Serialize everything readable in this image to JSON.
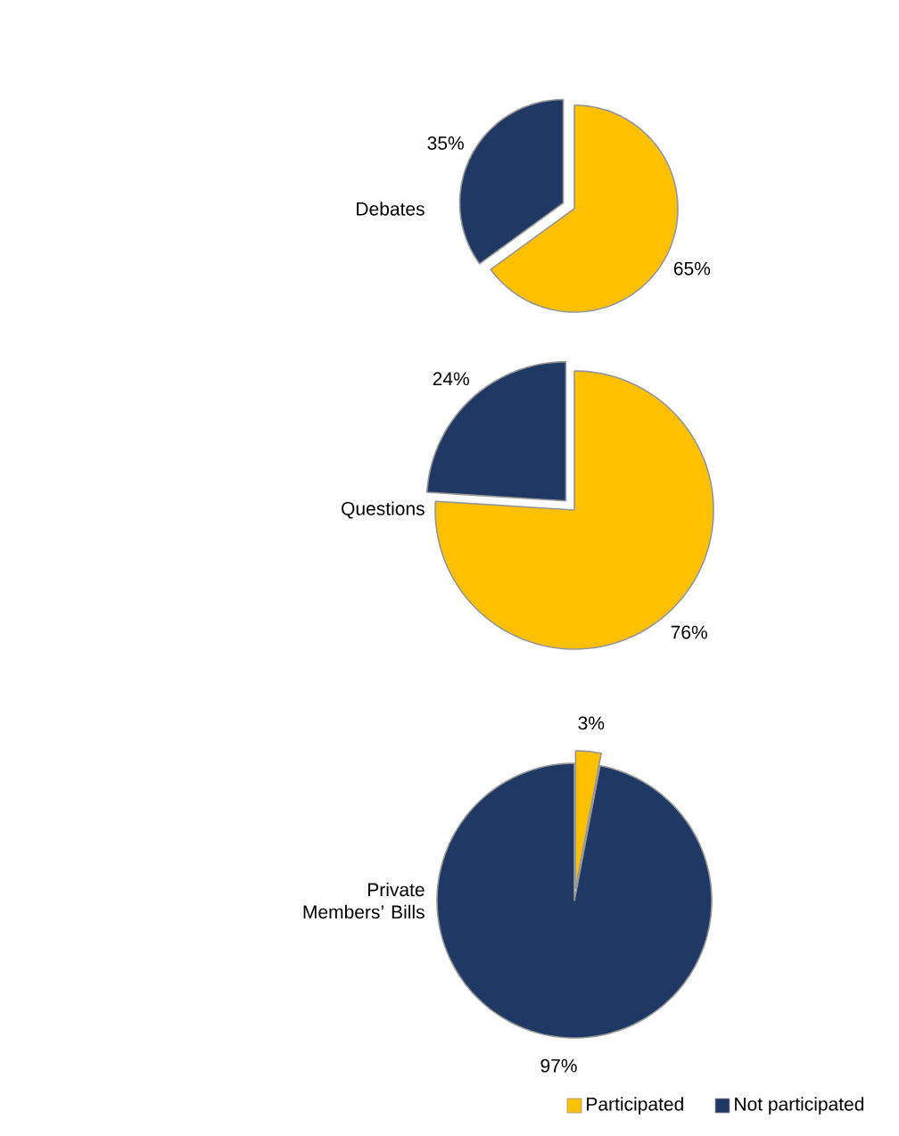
{
  "chart_data": [
    {
      "type": "pie",
      "title": "Debates",
      "categories": [
        null,
        null
      ],
      "values": [
        65,
        35
      ],
      "colors": [
        "#ffc000",
        "#1f3864"
      ],
      "value_labels": [
        "65%",
        "35%"
      ],
      "legend": false
    },
    {
      "type": "pie",
      "title": "Questions",
      "categories": [
        null,
        null
      ],
      "values": [
        76,
        24
      ],
      "colors": [
        "#ffc000",
        "#1f3864"
      ],
      "value_labels": [
        "76%",
        "24%"
      ],
      "legend": false
    },
    {
      "type": "pie",
      "title": "Private Members’ Bills",
      "categories": [
        "Participated",
        "Not participated"
      ],
      "values": [
        3,
        97
      ],
      "colors": [
        "#ffc000",
        "#1f3864"
      ],
      "value_labels": [
        "3%",
        "97%"
      ],
      "legend": "bottom"
    }
  ]
}
